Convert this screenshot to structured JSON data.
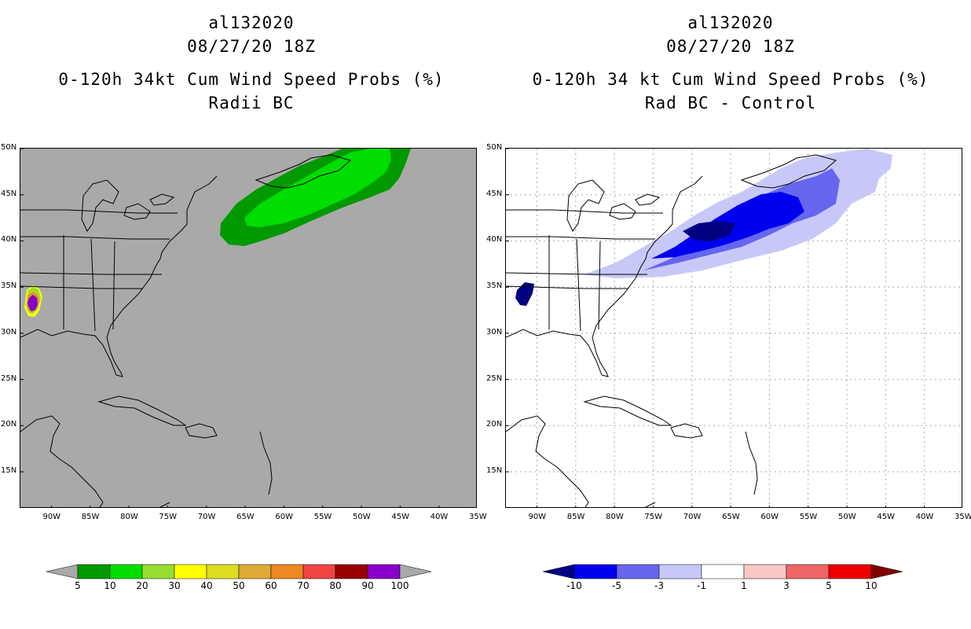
{
  "left": {
    "title_lines": [
      "al132020",
      "08/27/20 18Z",
      "0-120h 34kt Cum Wind Speed Probs (%)",
      "Radii BC"
    ],
    "background": "#a9a9a9",
    "colorbar": {
      "colors": [
        "#009900",
        "#00dd00",
        "#99dd33",
        "#ffff00",
        "#dddd22",
        "#ddaa33",
        "#ee8822",
        "#ee4444",
        "#990000",
        "#8800cc"
      ],
      "arrow_color": "#a9a9a9",
      "labels": [
        "5",
        "10",
        "20",
        "30",
        "40",
        "50",
        "60",
        "70",
        "80",
        "90",
        "100"
      ]
    }
  },
  "right": {
    "title_lines": [
      "al132020",
      "08/27/20 18Z",
      "0-120h 34 kt Cum Wind Speed Probs (%)",
      "Rad BC - Control"
    ],
    "background": "#ffffff",
    "colorbar": {
      "colors": [
        "#0000ee",
        "#6666ee",
        "#c8c8f8",
        "#ffffff",
        "#f8c8c8",
        "#ee6666",
        "#ee0000"
      ],
      "arrow_left_color": "#000080",
      "arrow_right_color": "#800000",
      "labels": [
        "-10",
        "-5",
        "-3",
        "-1",
        "1",
        "3",
        "5",
        "10"
      ]
    }
  },
  "axes": {
    "lon_labels": [
      "90W",
      "85W",
      "80W",
      "75W",
      "70W",
      "65W",
      "60W",
      "55W",
      "50W",
      "45W",
      "40W",
      "35W"
    ],
    "lon_values": [
      -90,
      -85,
      -80,
      -75,
      -70,
      -65,
      -60,
      -55,
      -50,
      -45,
      -40,
      -35
    ],
    "lat_labels": [
      "50N",
      "45N",
      "40N",
      "35N",
      "30N",
      "25N",
      "20N",
      "15N"
    ],
    "lat_values": [
      50,
      45,
      40,
      35,
      30,
      25,
      20,
      15
    ],
    "lon_range": [
      -94,
      -35
    ],
    "lat_range": [
      11,
      50
    ]
  }
}
